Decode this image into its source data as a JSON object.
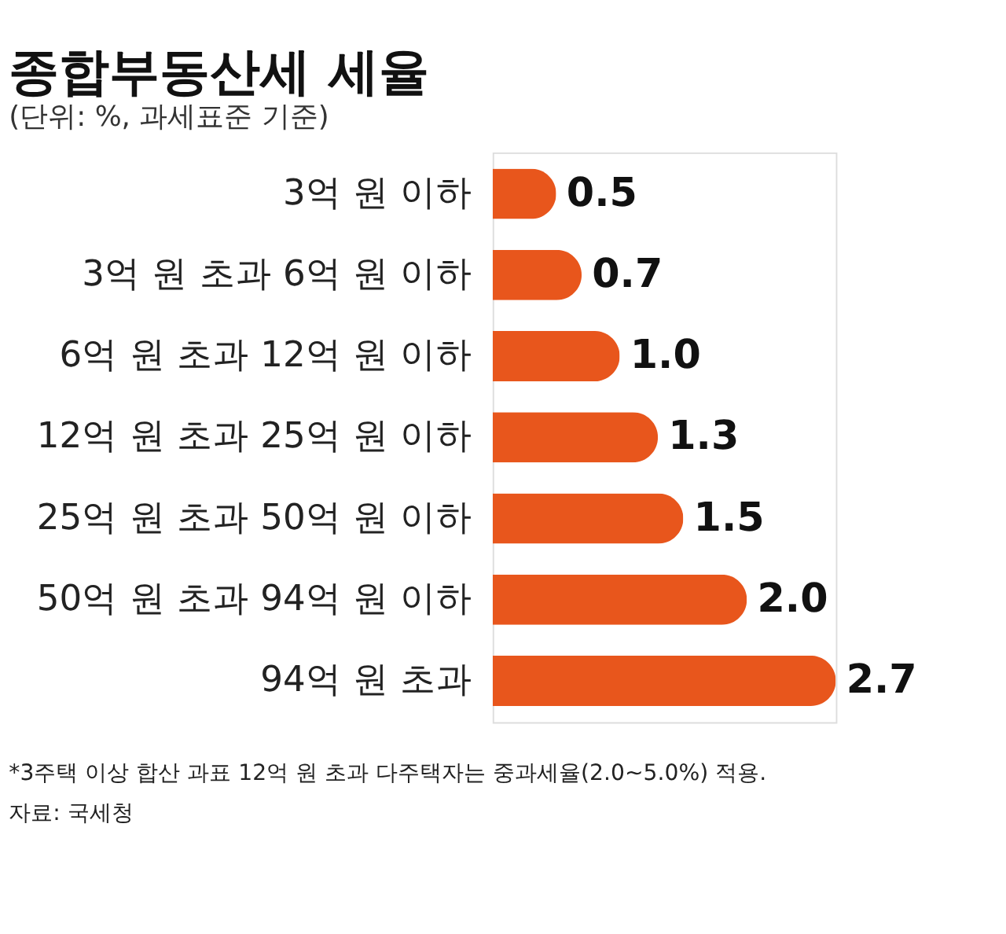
{
  "chart_data": {
    "type": "bar",
    "orientation": "horizontal",
    "title": "종합부동산세 세율",
    "subtitle": "(단위: %, 과세표준 기준)",
    "categories": [
      "3억 원 이하",
      "3억 원 초과 6억 원 이하",
      "6억 원 초과 12억 원 이하",
      "12억 원 초과 25억 원 이하",
      "25억 원 초과 50억 원 이하",
      "50억 원 초과 94억 원 이하",
      "94억 원 초과"
    ],
    "values": [
      0.5,
      0.7,
      1.0,
      1.3,
      1.5,
      2.0,
      2.7
    ],
    "value_labels": [
      "0.5",
      "0.7",
      "1.0",
      "1.3",
      "1.5",
      "2.0",
      "2.7"
    ],
    "color": "#e8561c",
    "annotations": [
      "*3주택 이상 합산 과표 12억 원 초과 다주택자는 중과세율(2.0~5.0%) 적용.",
      "자료: 국세청"
    ]
  }
}
